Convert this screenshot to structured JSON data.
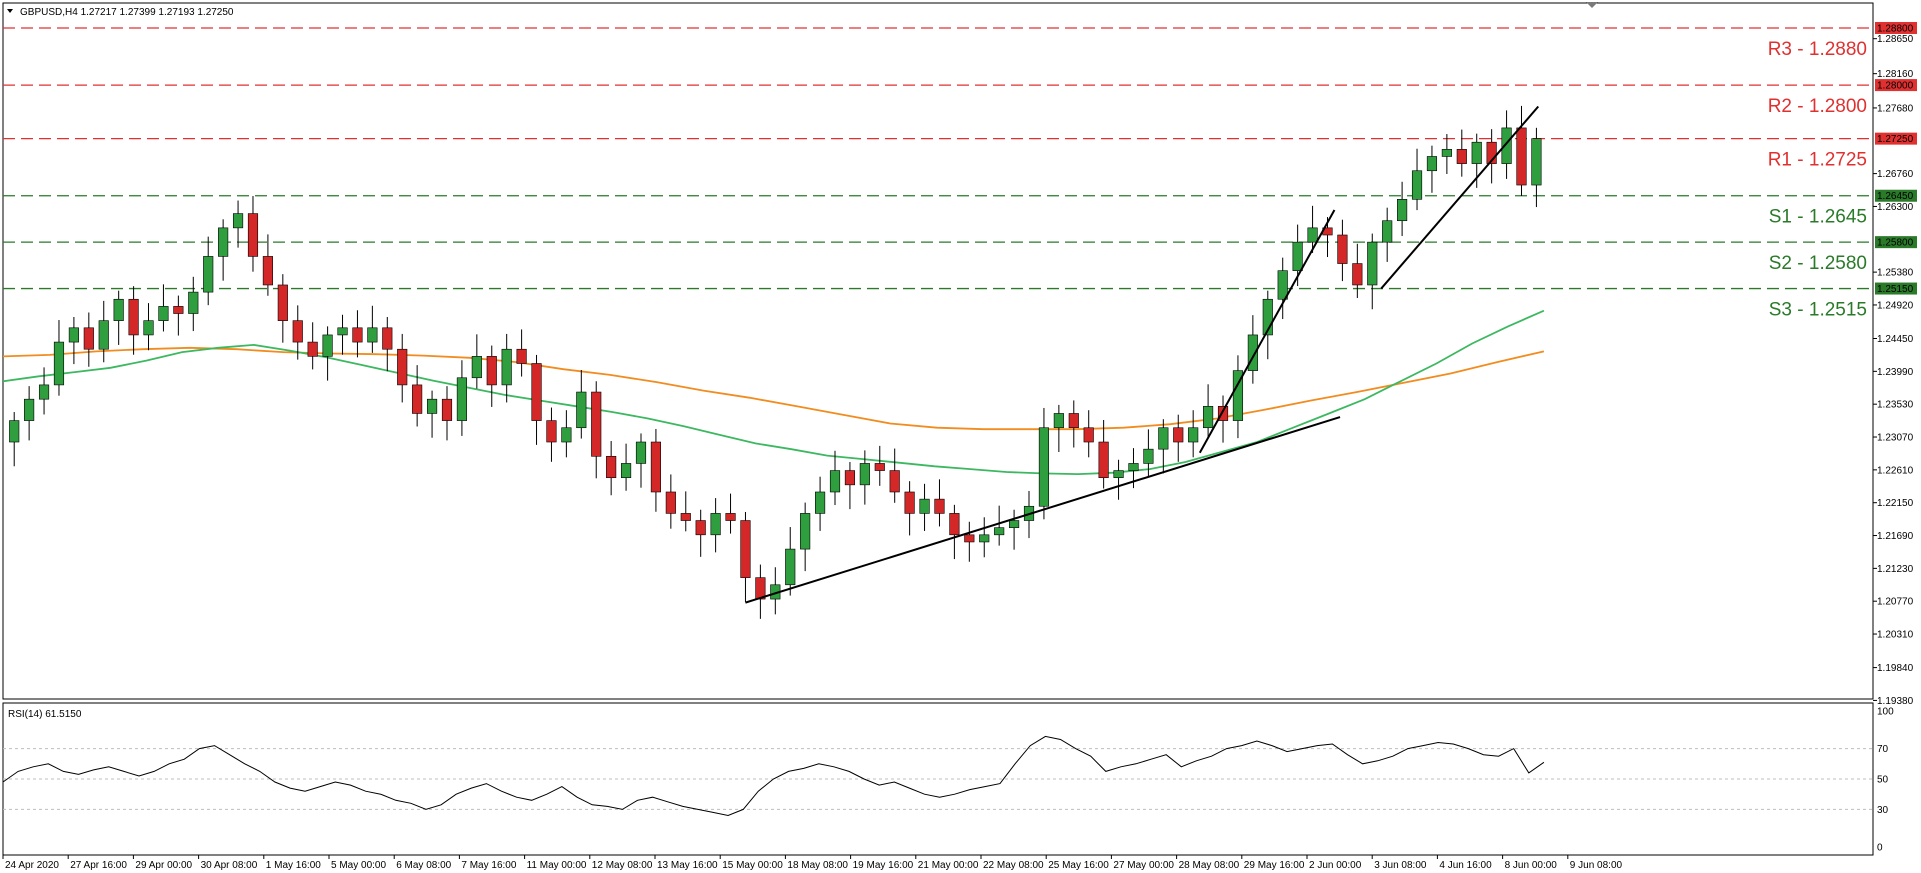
{
  "header": {
    "symbol_line": "GBPUSD,H4  1.27217 1.27399 1.27193 1.27250"
  },
  "rsi_panel": {
    "label": "RSI(14) 61.5150",
    "levels": [
      70,
      50,
      30
    ],
    "axis_ticks": [
      "100",
      "70",
      "50",
      "30",
      "0"
    ]
  },
  "colors": {
    "up_candle": "#2e9e3e",
    "down_candle": "#d42828",
    "resistance": "#e03030",
    "support": "#2a7a2a",
    "ma_fast": "#3cb860",
    "ma_slow": "#f28c1e",
    "trendline": "#000000"
  },
  "chart_data": {
    "type": "candlestick",
    "symbol": "GBPUSD",
    "timeframe": "H4",
    "ylim": [
      1.194,
      1.2915
    ],
    "y_ticks": [
      "1.28650",
      "1.28160",
      "1.27680",
      "1.26760",
      "1.26300",
      "1.25380",
      "1.24920",
      "1.24450",
      "1.23990",
      "1.23530",
      "1.23070",
      "1.22610",
      "1.22150",
      "1.21690",
      "1.21230",
      "1.20770",
      "1.20310",
      "1.19840",
      "1.19380"
    ],
    "x_ticks": [
      "24 Apr 2020",
      "27 Apr 16:00",
      "29 Apr 00:00",
      "30 Apr 08:00",
      "1 May 16:00",
      "5 May 00:00",
      "6 May 08:00",
      "7 May 16:00",
      "11 May 00:00",
      "12 May 08:00",
      "13 May 16:00",
      "15 May 00:00",
      "18 May 08:00",
      "19 May 16:00",
      "21 May 00:00",
      "22 May 08:00",
      "25 May 16:00",
      "27 May 00:00",
      "28 May 08:00",
      "29 May 16:00",
      "2 Jun 00:00",
      "3 Jun 08:00",
      "4 Jun 16:00",
      "8 Jun 00:00",
      "9 Jun 08:00"
    ],
    "levels": [
      {
        "name": "R3",
        "label": "R3 - 1.2880",
        "value": 1.288,
        "tag": "1.28800",
        "type": "resistance"
      },
      {
        "name": "R2",
        "label": "R2 - 1.2800",
        "value": 1.28,
        "tag": "1.28000",
        "type": "resistance"
      },
      {
        "name": "R1",
        "label": "R1 - 1.2725",
        "value": 1.2725,
        "tag": "1.27250",
        "type": "resistance"
      },
      {
        "name": "S1",
        "label": "S1 - 1.2645",
        "value": 1.2645,
        "tag": "1.26450",
        "type": "support"
      },
      {
        "name": "S2",
        "label": "S2 - 1.2580",
        "value": 1.258,
        "tag": "1.25800",
        "type": "support"
      },
      {
        "name": "S3",
        "label": "S3 - 1.2515",
        "value": 1.2515,
        "tag": "1.25150",
        "type": "support"
      }
    ],
    "close_path": [
      1.233,
      1.236,
      1.238,
      1.244,
      1.246,
      1.243,
      1.247,
      1.25,
      1.245,
      1.247,
      1.249,
      1.248,
      1.251,
      1.256,
      1.26,
      1.262,
      1.256,
      1.252,
      1.247,
      1.244,
      1.242,
      1.245,
      1.246,
      1.244,
      1.246,
      1.243,
      1.238,
      1.234,
      1.236,
      1.233,
      1.239,
      1.242,
      1.238,
      1.243,
      1.241,
      1.233,
      1.23,
      1.232,
      1.237,
      1.228,
      1.225,
      1.227,
      1.23,
      1.223,
      1.22,
      1.219,
      1.217,
      1.22,
      1.219,
      1.211,
      1.208,
      1.21,
      1.215,
      1.22,
      1.223,
      1.226,
      1.224,
      1.227,
      1.226,
      1.223,
      1.22,
      1.222,
      1.22,
      1.217,
      1.216,
      1.217,
      1.218,
      1.219,
      1.221,
      1.232,
      1.234,
      1.232,
      1.23,
      1.225,
      1.226,
      1.227,
      1.229,
      1.232,
      1.23,
      1.232,
      1.235,
      1.233,
      1.24,
      1.245,
      1.25,
      1.254,
      1.258,
      1.26,
      1.259,
      1.255,
      1.252,
      1.258,
      1.261,
      1.264,
      1.268,
      1.27,
      1.271,
      1.269,
      1.272,
      1.269,
      1.274,
      1.266,
      1.2725
    ],
    "ma_fast_path": [
      1.2385,
      1.2392,
      1.2398,
      1.2404,
      1.2414,
      1.2426,
      1.2432,
      1.2436,
      1.2428,
      1.2419,
      1.2408,
      1.2397,
      1.2386,
      1.2376,
      1.2366,
      1.2358,
      1.235,
      1.2342,
      1.2333,
      1.2322,
      1.231,
      1.2298,
      1.229,
      1.2281,
      1.2276,
      1.2271,
      1.2266,
      1.2262,
      1.2258,
      1.2256,
      1.2255,
      1.2257,
      1.2262,
      1.2272,
      1.2286,
      1.23,
      1.232,
      1.234,
      1.236,
      1.2385,
      1.241,
      1.2438,
      1.2462,
      1.2484
    ],
    "ma_slow_path": [
      1.242,
      1.2422,
      1.2427,
      1.243,
      1.2432,
      1.243,
      1.2426,
      1.2424,
      1.2423,
      1.2421,
      1.2418,
      1.2412,
      1.2402,
      1.2394,
      1.2384,
      1.2372,
      1.2362,
      1.235,
      1.2338,
      1.2326,
      1.232,
      1.2318,
      1.2318,
      1.2318,
      1.232,
      1.2325,
      1.2333,
      1.2345,
      1.2358,
      1.237,
      1.2383,
      1.2396,
      1.2412,
      1.2427
    ],
    "trendlines": [
      {
        "from": [
          0.397,
          1.2075
        ],
        "to": [
          0.715,
          1.2335
        ]
      },
      {
        "from": [
          0.64,
          1.2285
        ],
        "to": [
          0.712,
          1.2625
        ]
      },
      {
        "from": [
          0.737,
          1.2515
        ],
        "to": [
          0.821,
          1.277
        ]
      }
    ],
    "rsi_path": [
      48,
      55,
      58,
      60,
      55,
      53,
      56,
      58,
      55,
      52,
      55,
      60,
      63,
      70,
      72,
      66,
      60,
      55,
      48,
      44,
      42,
      45,
      48,
      46,
      42,
      40,
      36,
      34,
      30,
      33,
      40,
      44,
      47,
      42,
      38,
      36,
      40,
      45,
      38,
      33,
      32,
      30,
      36,
      38,
      35,
      32,
      30,
      28,
      26,
      30,
      42,
      50,
      55,
      57,
      60,
      58,
      55,
      50,
      46,
      48,
      44,
      40,
      38,
      40,
      43,
      45,
      47,
      60,
      72,
      78,
      76,
      70,
      65,
      55,
      58,
      60,
      63,
      66,
      58,
      62,
      65,
      70,
      72,
      75,
      72,
      68,
      70,
      72,
      73,
      66,
      60,
      62,
      65,
      70,
      72,
      74,
      73,
      70,
      66,
      65,
      70,
      54,
      61
    ]
  }
}
